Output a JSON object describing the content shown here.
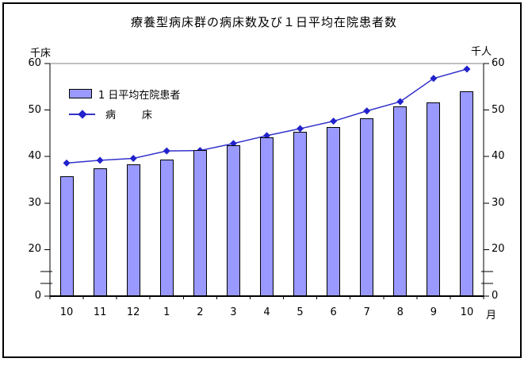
{
  "chart_data": {
    "type": "bar",
    "subtype": "combo-bar-line-dual-axis",
    "title": "療養型病床群の病床数及び１日平均在院患者数",
    "categories": [
      "10",
      "11",
      "12",
      "1",
      "2",
      "3",
      "4",
      "5",
      "6",
      "7",
      "8",
      "9",
      "10"
    ],
    "x_axis_suffix": "月",
    "left_axis": {
      "label": "千床",
      "ticks": [
        60,
        50,
        40,
        30,
        20,
        0
      ],
      "axis_break_between": [
        0,
        20
      ]
    },
    "right_axis": {
      "label": "千人",
      "ticks": [
        60,
        50,
        40,
        30,
        20,
        0
      ],
      "axis_break_between": [
        0,
        20
      ]
    },
    "ylim": [
      0,
      60
    ],
    "grid": false,
    "legend_position": "upper-left-inside",
    "series": [
      {
        "name": "１日平均在院患者",
        "legend_label": "1 日平均在院患者",
        "type": "bar",
        "color": "#9999FF",
        "border_color": "#000000",
        "values": [
          35.8,
          37.5,
          38.4,
          39.3,
          41.4,
          42.4,
          44.1,
          45.3,
          46.4,
          48.2,
          50.7,
          51.6,
          54.0
        ]
      },
      {
        "name": "病床",
        "legend_label": "病        床",
        "type": "line",
        "color": "#3333CC",
        "marker": "diamond",
        "marker_color": "#2222CC",
        "values": [
          38.6,
          39.2,
          39.6,
          41.2,
          41.3,
          42.8,
          44.5,
          46.0,
          47.6,
          49.8,
          51.8,
          56.8,
          58.8
        ]
      }
    ],
    "frame_top_color": "#808080",
    "axis_color": "#000000"
  }
}
